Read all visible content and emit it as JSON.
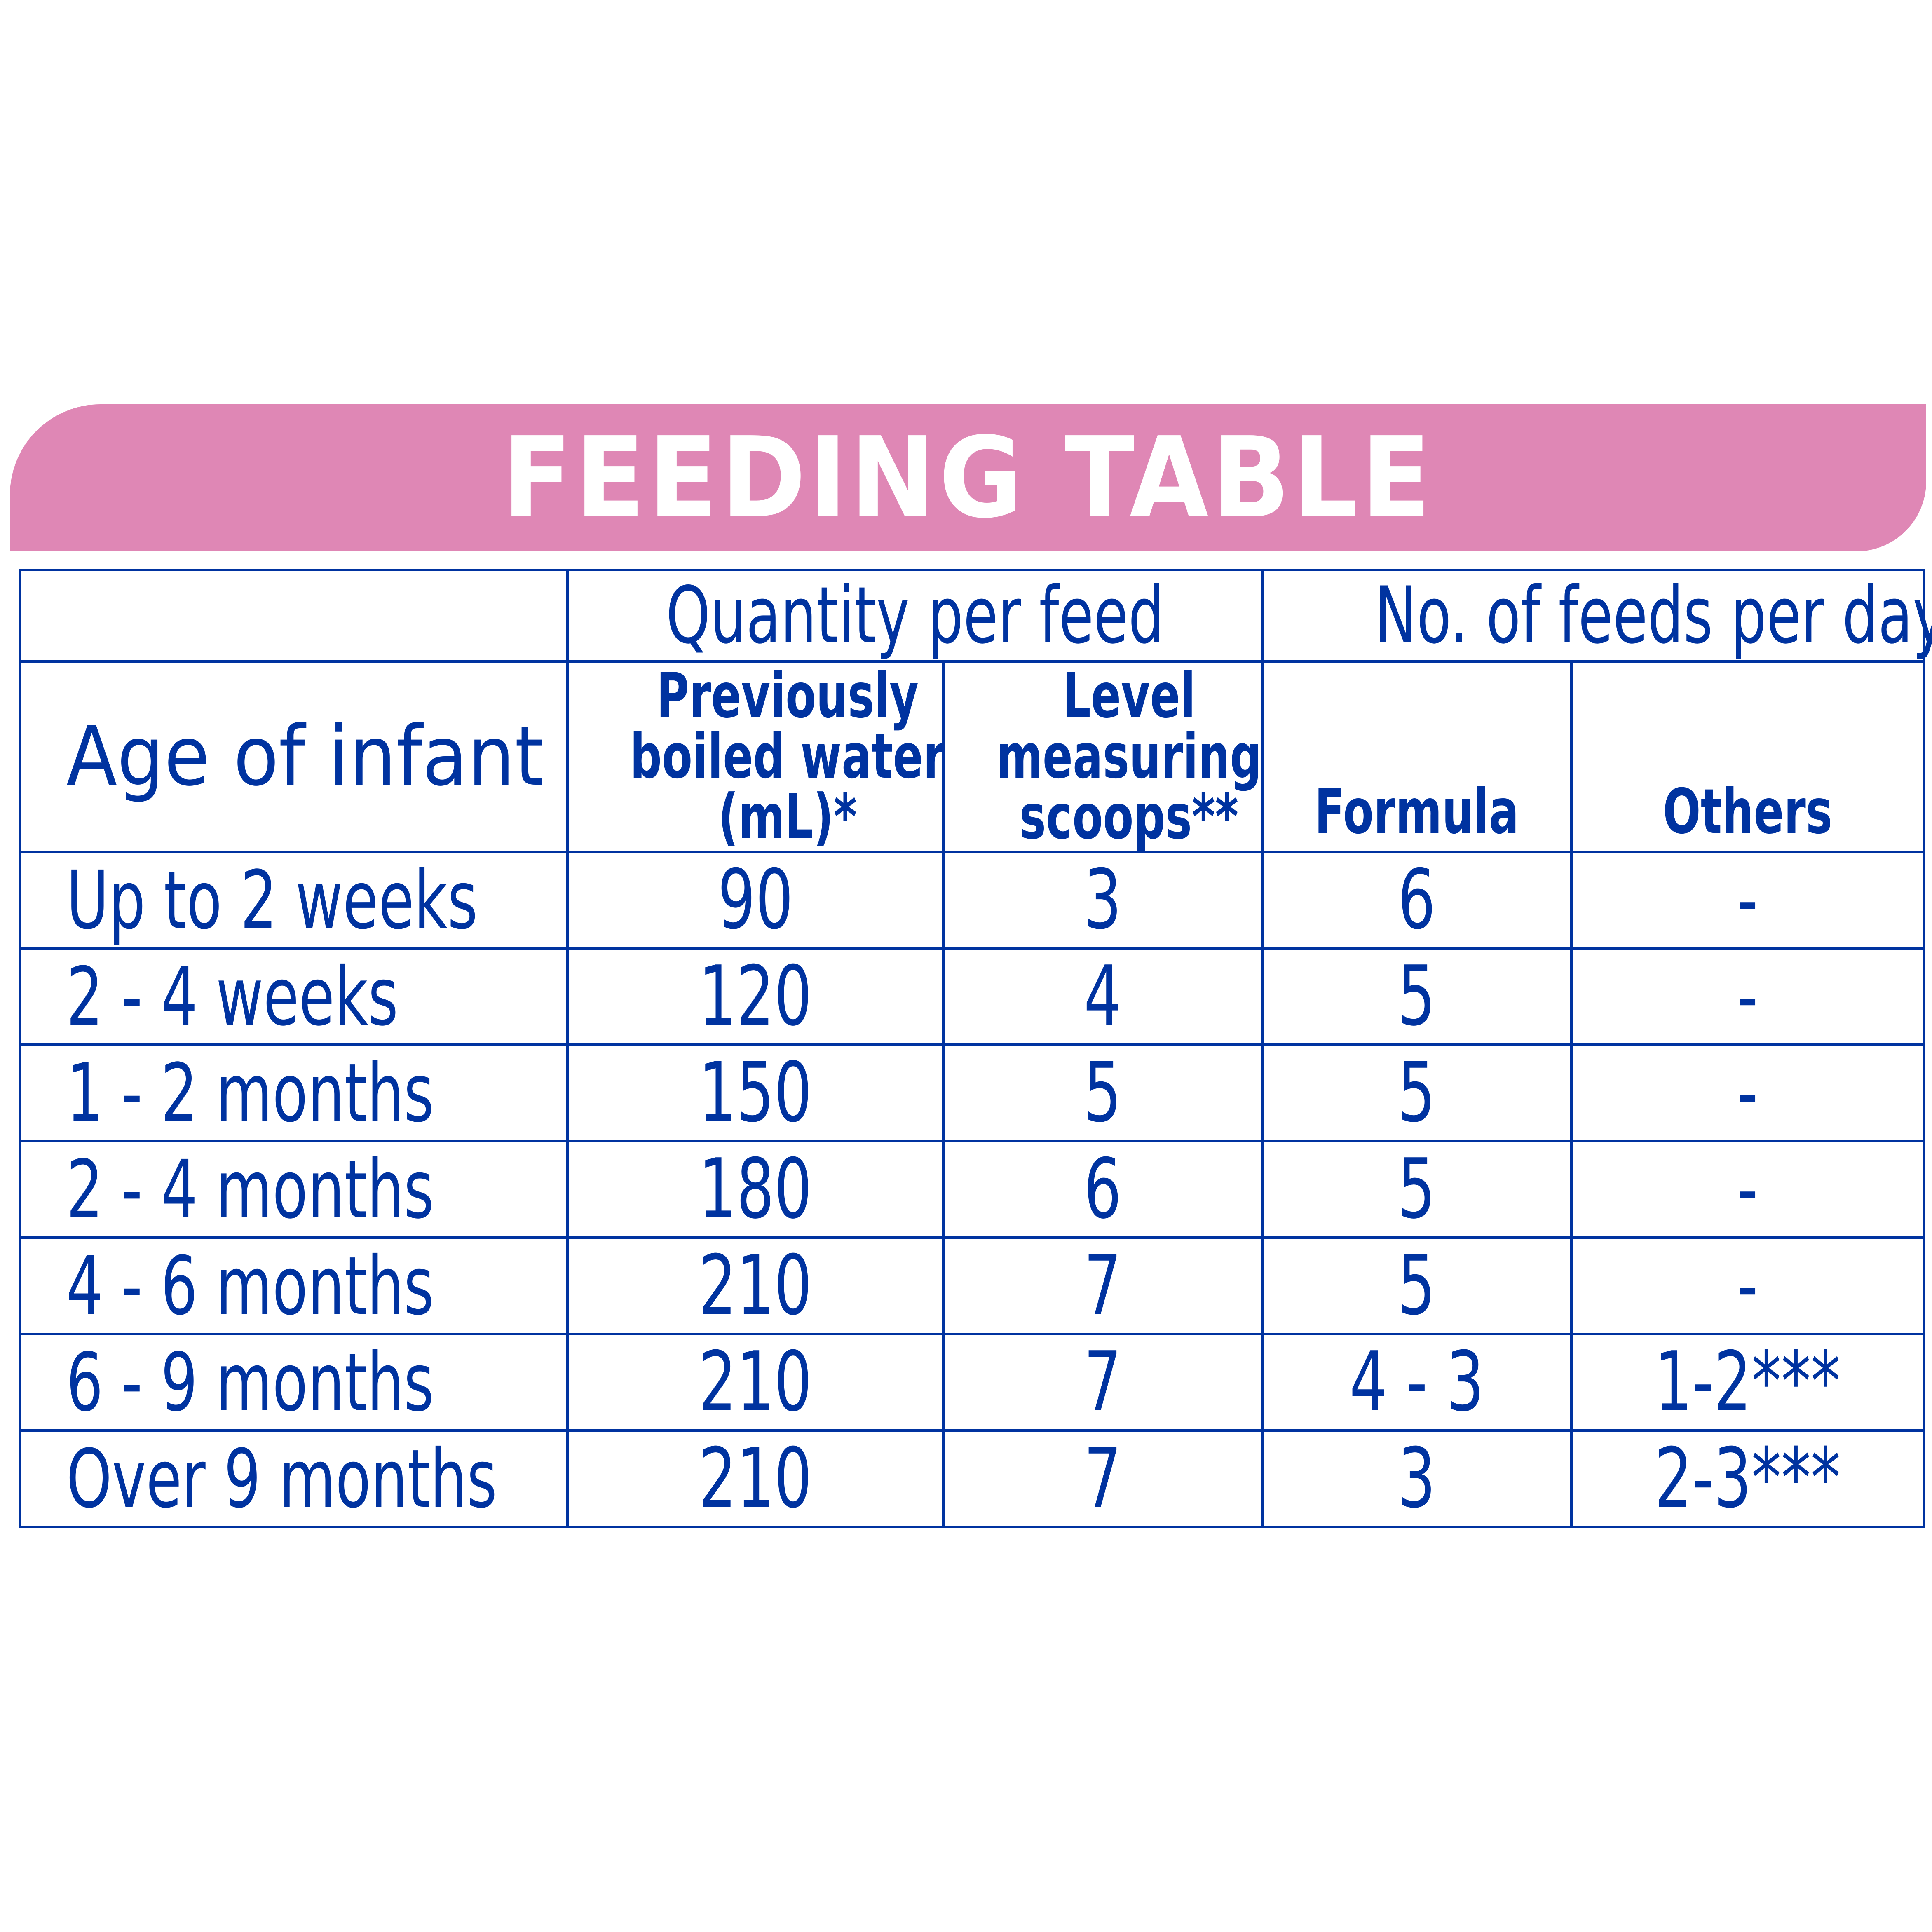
{
  "title": "FEEDING TABLE",
  "colors": {
    "banner": "#df87b5",
    "text": "#0033a0",
    "title_text": "#ffffff"
  },
  "table": {
    "group_headers": {
      "quantity": "Quantity per feed",
      "feeds": "No. of feeds per day"
    },
    "headers": {
      "age": "Age of infant",
      "water": [
        "Previously",
        "boiled water",
        "(mL)*"
      ],
      "scoops": [
        "Level",
        "measuring",
        "scoops**"
      ],
      "formula": "Formula",
      "others": "Others"
    },
    "rows": [
      {
        "age": "Up to 2 weeks",
        "water": "90",
        "scoops": "3",
        "formula": "6",
        "others": "-"
      },
      {
        "age": "2 - 4 weeks",
        "water": "120",
        "scoops": "4",
        "formula": "5",
        "others": "-"
      },
      {
        "age": "1 - 2 months",
        "water": "150",
        "scoops": "5",
        "formula": "5",
        "others": "-"
      },
      {
        "age": "2 - 4 months",
        "water": "180",
        "scoops": "6",
        "formula": "5",
        "others": "-"
      },
      {
        "age": "4 - 6 months",
        "water": "210",
        "scoops": "7",
        "formula": "5",
        "others": "-"
      },
      {
        "age": "6 - 9 months",
        "water": "210",
        "scoops": "7",
        "formula": "4 - 3",
        "others": "1-2***"
      },
      {
        "age": "Over 9 months",
        "water": "210",
        "scoops": "7",
        "formula": "3",
        "others": "2-3***"
      }
    ]
  }
}
